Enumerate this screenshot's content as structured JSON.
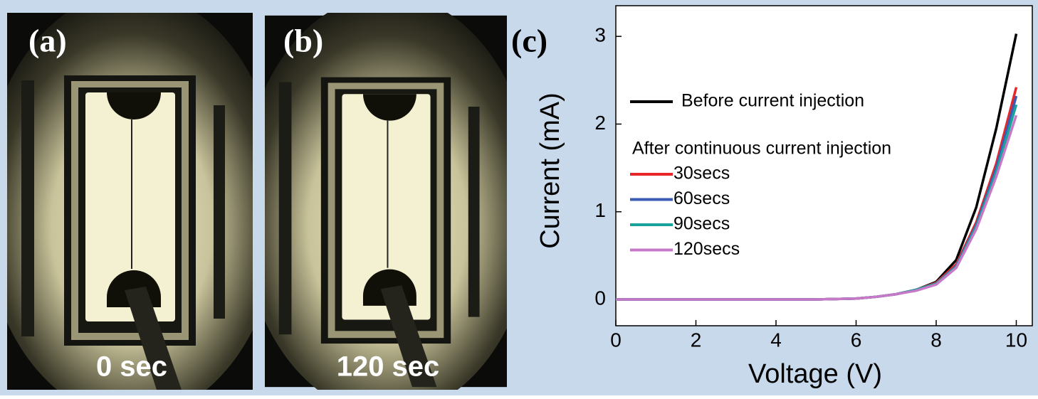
{
  "panels": [
    {
      "label": "(a)",
      "caption": "0 sec"
    },
    {
      "label": "(b)",
      "caption": "120 sec"
    }
  ],
  "chart_data": {
    "type": "line",
    "label": "(c)",
    "x_label": "Voltage (V)",
    "y_label": "Current (mA)",
    "annotation": "After continuous current injection",
    "x": [
      0,
      1,
      2,
      3,
      4,
      5,
      6,
      6.5,
      7,
      7.5,
      8,
      8.5,
      9,
      9.5,
      10
    ],
    "series": [
      {
        "name": "Before current injection",
        "color": "#000000",
        "values": [
          0,
          0,
          0,
          0,
          0,
          0,
          0.01,
          0.03,
          0.06,
          0.11,
          0.2,
          0.45,
          1.05,
          1.95,
          3.03
        ]
      },
      {
        "name": "30secs",
        "color": "#e8262a",
        "values": [
          0,
          0,
          0,
          0,
          0,
          0,
          0.01,
          0.03,
          0.06,
          0.11,
          0.19,
          0.4,
          0.88,
          1.55,
          2.42
        ]
      },
      {
        "name": "60secs",
        "color": "#3b5bb5",
        "values": [
          0,
          0,
          0,
          0,
          0,
          0,
          0.01,
          0.03,
          0.06,
          0.11,
          0.18,
          0.38,
          0.85,
          1.5,
          2.32
        ]
      },
      {
        "name": "90secs",
        "color": "#1aa39a",
        "values": [
          0,
          0,
          0,
          0,
          0,
          0,
          0.01,
          0.03,
          0.06,
          0.11,
          0.18,
          0.37,
          0.83,
          1.45,
          2.22
        ]
      },
      {
        "name": "120secs",
        "color": "#c878c8",
        "values": [
          0,
          0,
          0,
          0,
          0,
          0,
          0.01,
          0.03,
          0.06,
          0.1,
          0.17,
          0.36,
          0.8,
          1.4,
          2.1
        ]
      }
    ],
    "xlim": [
      0,
      10.4
    ],
    "ylim": [
      -0.3,
      3.35
    ],
    "xticks": [
      0,
      2,
      4,
      6,
      8,
      10
    ],
    "yticks": [
      0,
      1,
      2,
      3
    ]
  }
}
